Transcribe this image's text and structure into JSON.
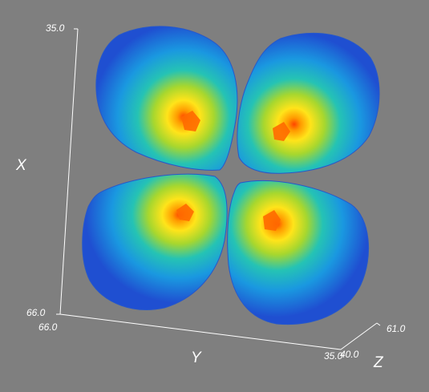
{
  "viewer": {
    "background": "#7f7f7f",
    "axis_color": "#ffffff",
    "colormap": [
      "#1f4fd1",
      "#1a9be0",
      "#22c7b5",
      "#b9db2c",
      "#ffe41a",
      "#ff8a00",
      "#ff4500"
    ]
  },
  "axes": {
    "x_label": "X",
    "y_label": "Y",
    "z_label": "Z",
    "x_max_tick": "35.0",
    "x_min_tick": "66.0",
    "y_min_tick": "66.0",
    "y_max_tick": "35.0",
    "z_min_tick": "40.0",
    "z_max_tick": "61.0"
  },
  "surface": {
    "lobe_count": 4,
    "lobe_positions": [
      "upper-left",
      "upper-right",
      "lower-left",
      "lower-right"
    ]
  }
}
